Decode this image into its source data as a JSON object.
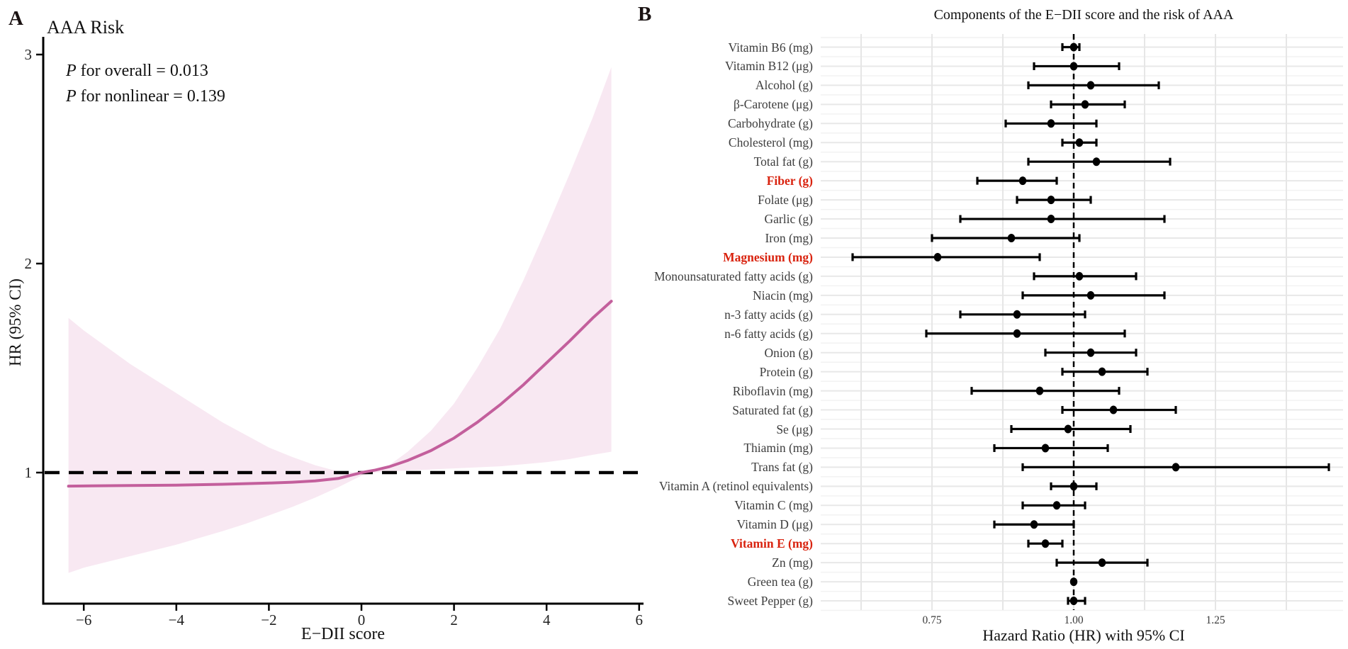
{
  "figure": {
    "type": "scientific-figure",
    "background": "#ffffff"
  },
  "chart_data": [
    {
      "type": "line",
      "panel_label": "A",
      "title": "AAA Risk",
      "annotations": [
        "P for overall = 0.013",
        "P for nonlinear = 0.139"
      ],
      "xlabel": "E−DII score",
      "ylabel": "HR (95% CI)",
      "x_ticks": [
        "−6",
        "−4",
        "−2",
        "0",
        "2",
        "4",
        "6"
      ],
      "x_tick_values": [
        -6,
        -4,
        -2,
        0,
        2,
        4,
        6
      ],
      "y_ticks": [
        "1",
        "2",
        "3"
      ],
      "y_tick_values": [
        1,
        2,
        3
      ],
      "xlim": [
        -6.9,
        6.1
      ],
      "ylim": [
        0.37,
        3.05
      ],
      "reference_line_y": 1,
      "grid": false,
      "curve_color": "#c35f9c",
      "band_color": "#f8e8f2",
      "x": [
        -6.33,
        -6,
        -5,
        -4,
        -3,
        -2.5,
        -2,
        -1.5,
        -1,
        -0.5,
        0,
        0.3,
        0.6,
        1,
        1.5,
        2,
        2.5,
        3,
        3.5,
        4,
        4.5,
        5,
        5.4
      ],
      "y": [
        0.935,
        0.936,
        0.938,
        0.94,
        0.944,
        0.947,
        0.95,
        0.954,
        0.96,
        0.972,
        1.0,
        1.012,
        1.028,
        1.058,
        1.105,
        1.165,
        1.24,
        1.325,
        1.42,
        1.525,
        1.63,
        1.74,
        1.82
      ],
      "upper": [
        1.74,
        1.68,
        1.52,
        1.38,
        1.24,
        1.18,
        1.12,
        1.075,
        1.035,
        1.005,
        1.0,
        1.01,
        1.035,
        1.1,
        1.2,
        1.33,
        1.5,
        1.69,
        1.92,
        2.17,
        2.43,
        2.7,
        2.94
      ],
      "lower": [
        0.52,
        0.545,
        0.6,
        0.655,
        0.72,
        0.755,
        0.795,
        0.835,
        0.88,
        0.93,
        0.985,
        1.0,
        1.005,
        1.01,
        1.015,
        1.02,
        1.025,
        1.03,
        1.04,
        1.05,
        1.065,
        1.085,
        1.1
      ]
    },
    {
      "type": "scatter",
      "subtype": "forest-plot",
      "panel_label": "B",
      "title": "Components of the E−DII score and the risk of AAA",
      "xlabel": "Hazard Ratio (HR) with 95% CI",
      "x_ticks": [
        "0.75",
        "1.00",
        "1.25"
      ],
      "x_tick_values": [
        0.75,
        1.0,
        1.25
      ],
      "gridline_values": [
        0.625,
        0.75,
        0.875,
        1.0,
        1.125,
        1.25,
        1.375
      ],
      "xlim": [
        0.553,
        1.475
      ],
      "reference_line_x": 1,
      "grid": true,
      "marker_color": "#000000",
      "highlight_color": "#d9230f",
      "rows": [
        {
          "label": "Vitamin B6 (mg)",
          "hr": 1.0,
          "lo": 0.98,
          "hi": 1.01,
          "highlight": false
        },
        {
          "label": "Vitamin B12 (μg)",
          "hr": 1.0,
          "lo": 0.93,
          "hi": 1.08,
          "highlight": false
        },
        {
          "label": "Alcohol (g)",
          "hr": 1.03,
          "lo": 0.92,
          "hi": 1.15,
          "highlight": false
        },
        {
          "label": "β-Carotene (μg)",
          "hr": 1.02,
          "lo": 0.96,
          "hi": 1.09,
          "highlight": false
        },
        {
          "label": "Carbohydrate (g)",
          "hr": 0.96,
          "lo": 0.88,
          "hi": 1.04,
          "highlight": false
        },
        {
          "label": "Cholesterol (mg)",
          "hr": 1.01,
          "lo": 0.98,
          "hi": 1.04,
          "highlight": false
        },
        {
          "label": "Total fat (g)",
          "hr": 1.04,
          "lo": 0.92,
          "hi": 1.17,
          "highlight": false
        },
        {
          "label": "Fiber (g)",
          "hr": 0.91,
          "lo": 0.83,
          "hi": 0.97,
          "highlight": true
        },
        {
          "label": "Folate (μg)",
          "hr": 0.96,
          "lo": 0.9,
          "hi": 1.03,
          "highlight": false
        },
        {
          "label": "Garlic (g)",
          "hr": 0.96,
          "lo": 0.8,
          "hi": 1.16,
          "highlight": false
        },
        {
          "label": "Iron (mg)",
          "hr": 0.89,
          "lo": 0.75,
          "hi": 1.01,
          "highlight": false
        },
        {
          "label": "Magnesium (mg)",
          "hr": 0.76,
          "lo": 0.61,
          "hi": 0.94,
          "highlight": true
        },
        {
          "label": "Monounsaturated fatty acids (g)",
          "hr": 1.01,
          "lo": 0.93,
          "hi": 1.11,
          "highlight": false
        },
        {
          "label": "Niacin (mg)",
          "hr": 1.03,
          "lo": 0.91,
          "hi": 1.16,
          "highlight": false
        },
        {
          "label": "n-3 fatty acids (g)",
          "hr": 0.9,
          "lo": 0.8,
          "hi": 1.02,
          "highlight": false
        },
        {
          "label": "n-6 fatty acids (g)",
          "hr": 0.9,
          "lo": 0.74,
          "hi": 1.09,
          "highlight": false
        },
        {
          "label": "Onion (g)",
          "hr": 1.03,
          "lo": 0.95,
          "hi": 1.11,
          "highlight": false
        },
        {
          "label": "Protein (g)",
          "hr": 1.05,
          "lo": 0.98,
          "hi": 1.13,
          "highlight": false
        },
        {
          "label": "Riboflavin (mg)",
          "hr": 0.94,
          "lo": 0.82,
          "hi": 1.08,
          "highlight": false
        },
        {
          "label": "Saturated fat (g)",
          "hr": 1.07,
          "lo": 0.98,
          "hi": 1.18,
          "highlight": false
        },
        {
          "label": "Se (μg)",
          "hr": 0.99,
          "lo": 0.89,
          "hi": 1.1,
          "highlight": false
        },
        {
          "label": "Thiamin (mg)",
          "hr": 0.95,
          "lo": 0.86,
          "hi": 1.06,
          "highlight": false
        },
        {
          "label": "Trans fat (g)",
          "hr": 1.18,
          "lo": 0.91,
          "hi": 1.45,
          "highlight": false
        },
        {
          "label": "Vitamin A (retinol equivalents)",
          "hr": 1.0,
          "lo": 0.96,
          "hi": 1.04,
          "highlight": false
        },
        {
          "label": "Vitamin C (mg)",
          "hr": 0.97,
          "lo": 0.91,
          "hi": 1.02,
          "highlight": false
        },
        {
          "label": "Vitamin D (μg)",
          "hr": 0.93,
          "lo": 0.86,
          "hi": 1.0,
          "highlight": false
        },
        {
          "label": "Vitamin E (mg)",
          "hr": 0.95,
          "lo": 0.92,
          "hi": 0.98,
          "highlight": true
        },
        {
          "label": "Zn (mg)",
          "hr": 1.05,
          "lo": 0.97,
          "hi": 1.13,
          "highlight": false
        },
        {
          "label": "Green tea (g)",
          "hr": 1.0,
          "lo": 0.995,
          "hi": 1.005,
          "highlight": false
        },
        {
          "label": "Sweet Pepper (g)",
          "hr": 1.0,
          "lo": 0.99,
          "hi": 1.02,
          "highlight": false
        }
      ]
    }
  ]
}
